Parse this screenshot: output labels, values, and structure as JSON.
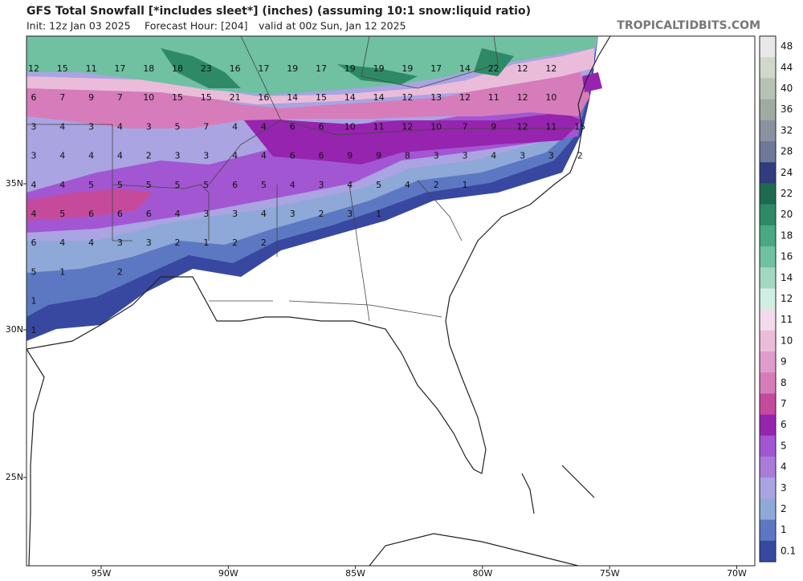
{
  "header": {
    "title": "GFS Total Snowfall [*includes sleet*] (inches) (assuming 10:1 snow:liquid ratio)",
    "init": "Init: 12z Jan 03 2025",
    "forecast_hour": "Forecast Hour: [204]",
    "valid": "valid at 00z Sun, Jan 12 2025",
    "credit": "TROPICALTIDBITS.COM"
  },
  "map": {
    "lat_labels": [
      "35N",
      "30N",
      "25N"
    ],
    "lon_labels": [
      "95W",
      "90W",
      "85W",
      "80W",
      "75W",
      "70W"
    ],
    "snow_labels": [
      [
        12,
        15,
        11,
        17,
        18,
        18,
        23,
        16,
        17,
        19,
        17,
        19,
        19,
        19,
        17,
        14,
        22,
        12,
        12
      ],
      [
        6,
        7,
        9,
        7,
        10,
        15,
        15,
        21,
        16,
        14,
        15,
        14,
        14,
        12,
        13,
        12,
        11,
        12,
        10
      ],
      [
        3,
        4,
        3,
        4,
        3,
        5,
        7,
        4,
        4,
        6,
        6,
        10,
        11,
        12,
        10,
        7,
        9,
        12,
        11,
        15
      ],
      [
        3,
        4,
        4,
        4,
        2,
        3,
        3,
        4,
        4,
        6,
        6,
        9,
        9,
        8,
        3,
        3,
        4,
        3,
        3,
        2
      ],
      [
        4,
        4,
        5,
        5,
        5,
        5,
        5,
        6,
        5,
        4,
        3,
        4,
        5,
        4,
        2,
        1
      ],
      [
        4,
        5,
        6,
        6,
        6,
        4,
        3,
        3,
        4,
        3,
        2,
        3,
        1
      ],
      [
        6,
        4,
        4,
        3,
        3,
        2,
        1,
        2,
        2
      ],
      [
        5,
        1,
        2
      ],
      [
        1
      ],
      [
        1
      ]
    ]
  },
  "colorbar": {
    "labels": [
      48,
      44,
      40,
      36,
      32,
      28,
      24,
      22,
      20,
      18,
      16,
      14,
      12,
      11,
      10,
      9,
      8,
      7,
      6,
      5,
      4,
      3,
      2,
      1,
      0.1
    ],
    "colors": [
      "#e8e8e8",
      "#d0d8cc",
      "#b8c2b4",
      "#a0aaa2",
      "#8a92a2",
      "#6e7898",
      "#303c7c",
      "#1e6a50",
      "#2e8a66",
      "#4aa882",
      "#70c0a2",
      "#a2d8c2",
      "#d2eee2",
      "#f2dcea",
      "#eabcda",
      "#e09cca",
      "#d67cba",
      "#c64a9c",
      "#9624ae",
      "#a256d2",
      "#aa7cda",
      "#aaa4e2",
      "#8ea8d8",
      "#5c78c2",
      "#3848a0"
    ]
  }
}
